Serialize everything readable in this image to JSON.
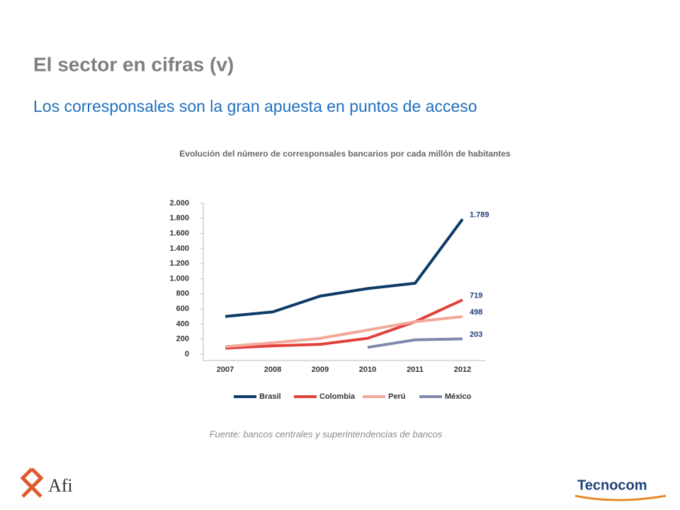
{
  "slide": {
    "title": "El sector en cifras (v)",
    "subtitle": "Los corresponsales son la gran apuesta en puntos de acceso",
    "source": "Fuente: bancos centrales y superintendencias de bancos",
    "logo_left": "Afi",
    "logo_right": "Tecnocom"
  },
  "chart_data": {
    "type": "line",
    "title": "Evolución del número de corresponsales bancarios por cada millón de habitantes",
    "categories": [
      "2007",
      "2008",
      "2009",
      "2010",
      "2011",
      "2012"
    ],
    "series": [
      {
        "name": "Brasil",
        "color": "#0d3a66",
        "values": [
          500,
          560,
          770,
          870,
          940,
          1789
        ],
        "value_labels": [
          null,
          null,
          null,
          null,
          null,
          "1.789"
        ]
      },
      {
        "name": "Colombia",
        "color": "#e0413b",
        "values": [
          80,
          110,
          130,
          210,
          430,
          719
        ],
        "value_labels": [
          null,
          null,
          null,
          null,
          null,
          "719"
        ]
      },
      {
        "name": "Perú",
        "color": "#f2a89a",
        "values": [
          100,
          150,
          210,
          320,
          430,
          498
        ],
        "value_labels": [
          null,
          null,
          null,
          null,
          null,
          "498"
        ]
      },
      {
        "name": "México",
        "color": "#8088ad",
        "values": [
          null,
          null,
          null,
          90,
          190,
          203
        ],
        "value_labels": [
          null,
          null,
          null,
          null,
          null,
          "203"
        ]
      }
    ],
    "ylim": [
      0,
      2000
    ],
    "yticks": [
      0,
      200,
      400,
      600,
      800,
      {
        "value": 1000,
        "label": "1.000"
      },
      {
        "value": 1200,
        "label": "1.200"
      },
      {
        "value": 1400,
        "label": "1.400"
      },
      {
        "value": 1600,
        "label": "1.600"
      },
      {
        "value": 1800,
        "label": "1.800"
      },
      {
        "value": 2000,
        "label": "2.000"
      }
    ],
    "legend": "bottom",
    "grid": false
  }
}
